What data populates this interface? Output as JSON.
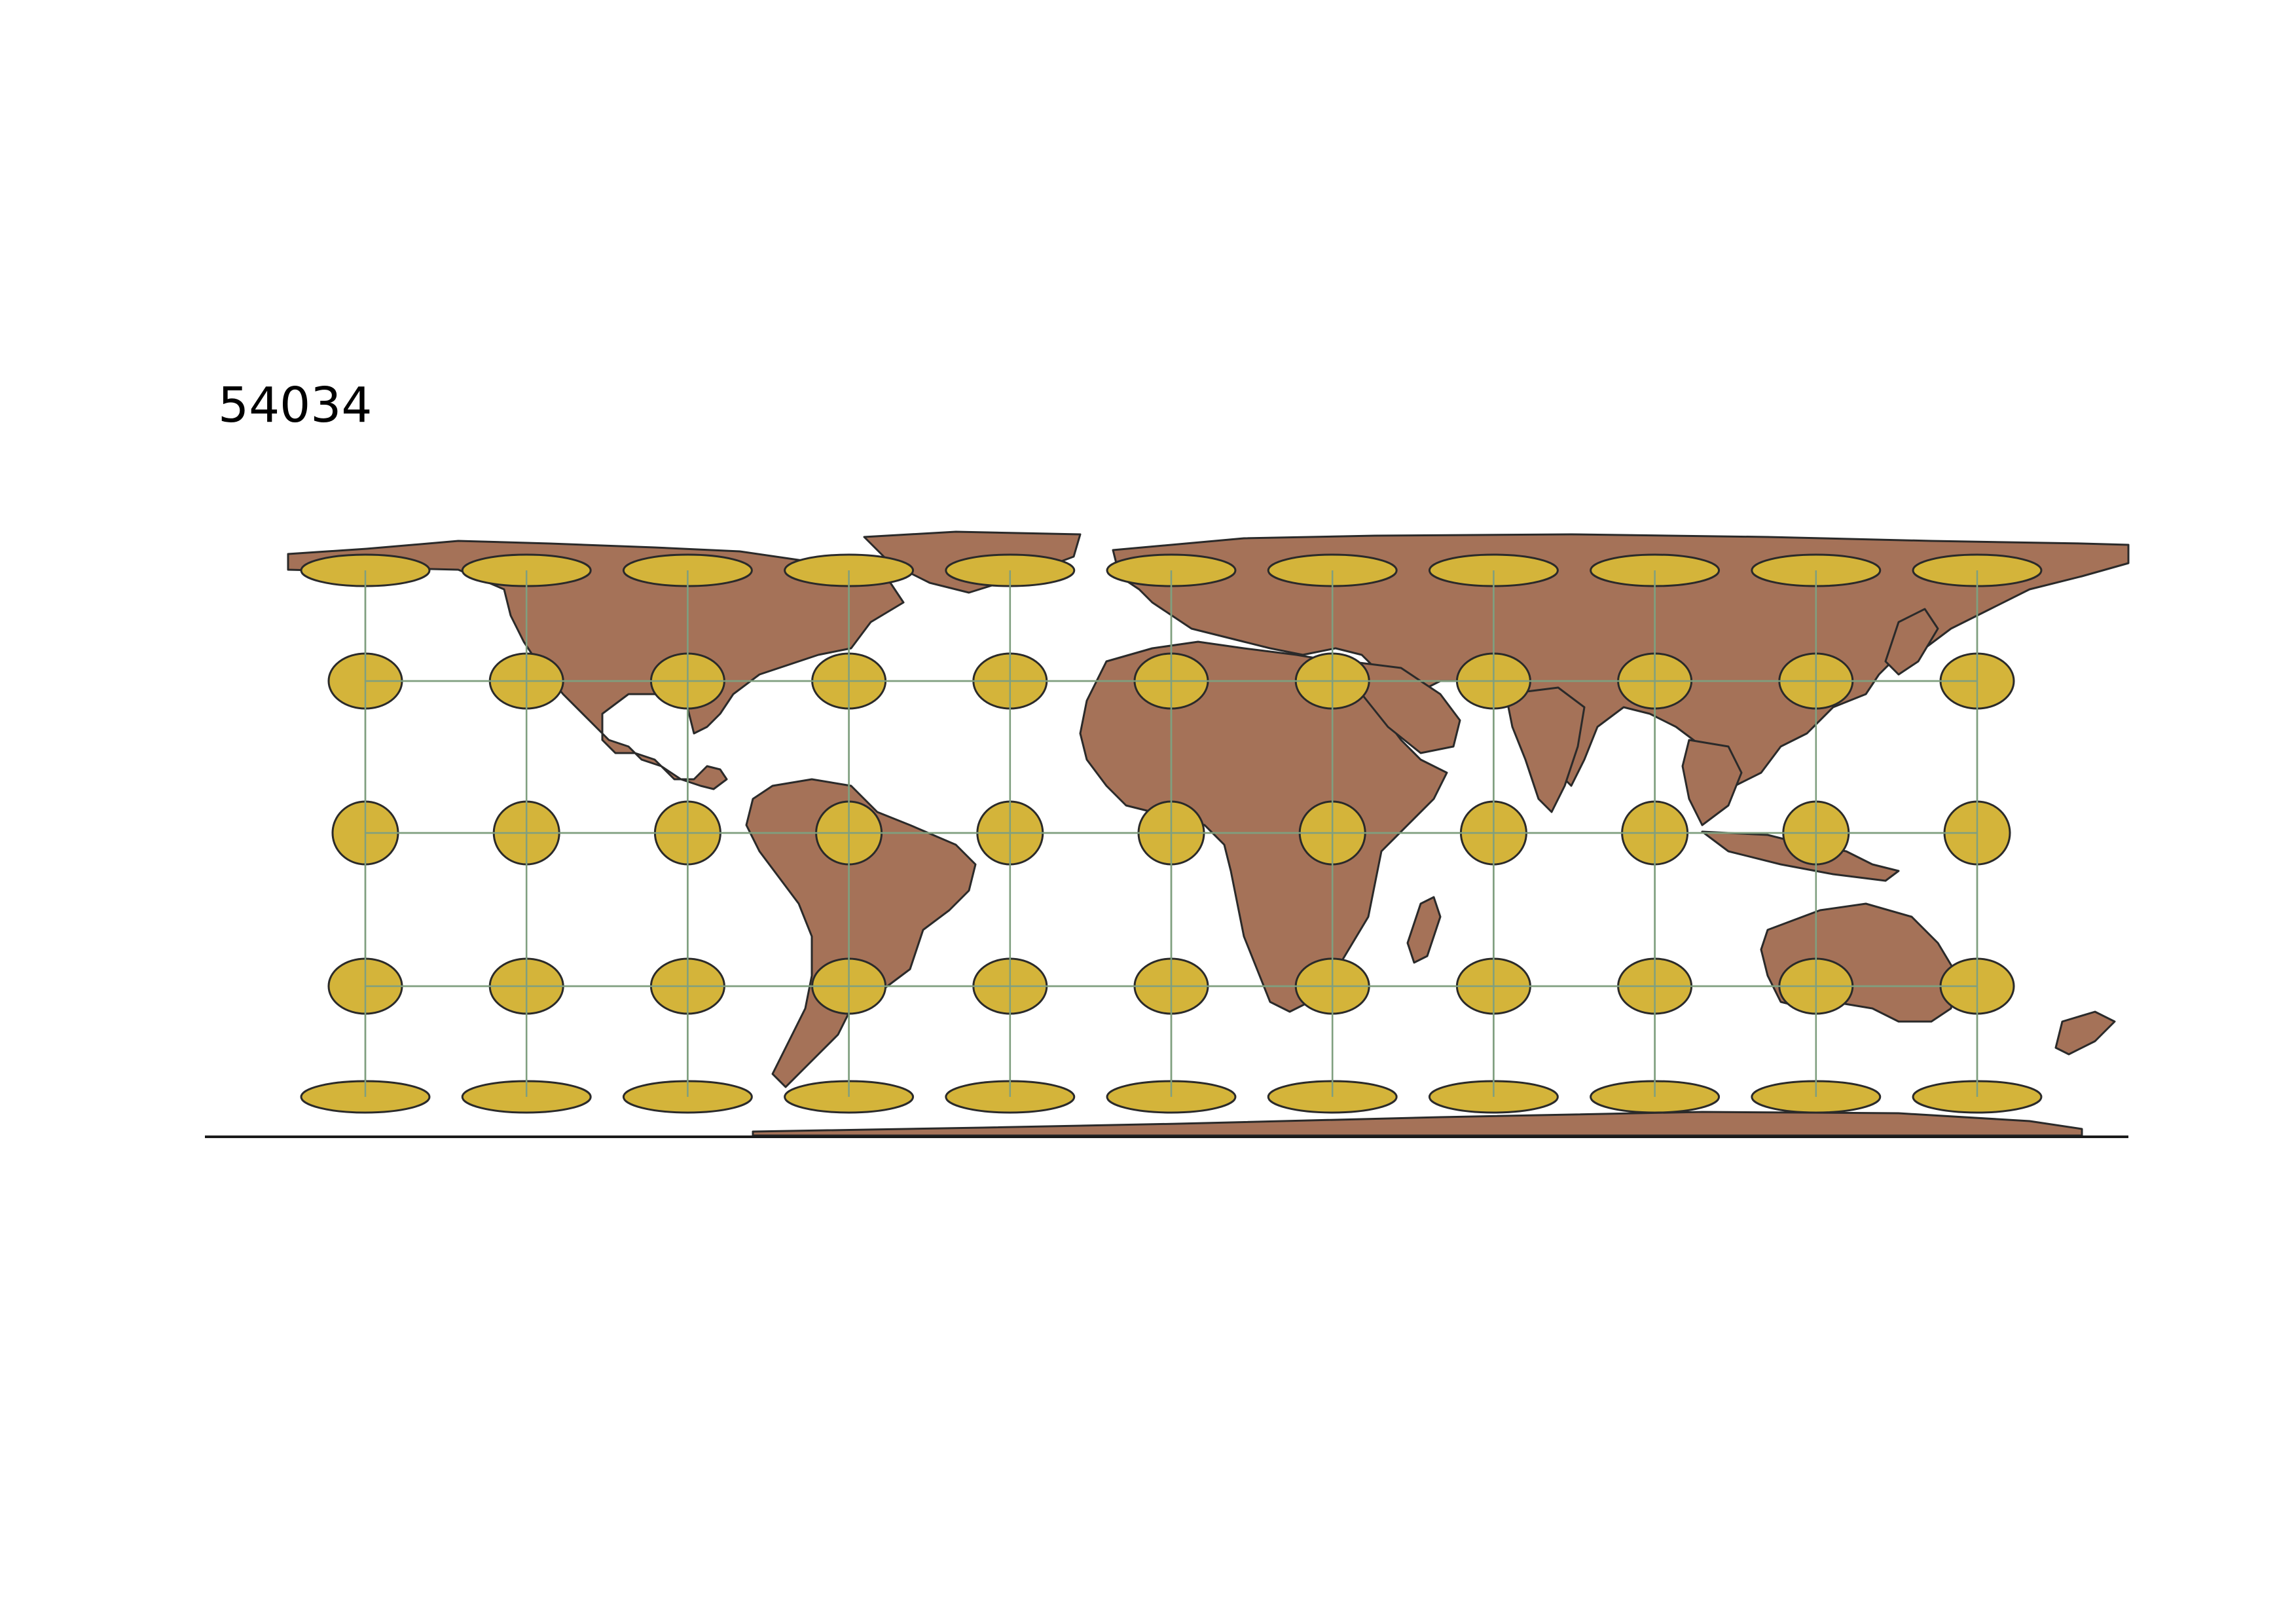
{
  "title": "54034",
  "colors": {
    "background": "#ffffff",
    "land": "#a57258",
    "land_outline": "#2a2a2a",
    "graticule": "#7f9f7f",
    "indicatrix_fill": "#d4b43a",
    "indicatrix_outline": "#2a2a2a"
  },
  "graticule": {
    "meridians_deg": [
      -150,
      -120,
      -90,
      -60,
      -30,
      0,
      30,
      60,
      90,
      120,
      150
    ],
    "parallels_deg": [
      60,
      30,
      0,
      -30,
      -60
    ]
  },
  "legend": []
}
